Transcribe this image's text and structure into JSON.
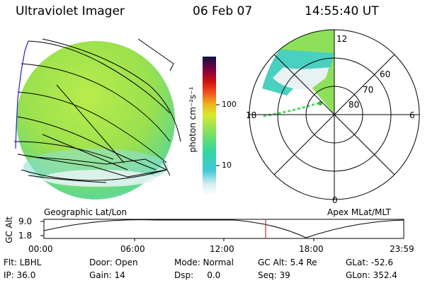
{
  "header": {
    "instrument": "Ultraviolet Imager",
    "date": "06 Feb 07",
    "time": "14:55:40 UT"
  },
  "colorbar": {
    "label": "photon cm⁻²s⁻¹",
    "ticks": [
      "100",
      "10"
    ]
  },
  "polar_plot": {
    "mlt_labels": [
      "12",
      "18",
      "6",
      "0"
    ],
    "mlat_labels": [
      "60",
      "70",
      "80"
    ]
  },
  "panel_labels": {
    "left": "Geographic Lat/Lon",
    "right": "Apex MLat/MLT"
  },
  "gc_alt_plot": {
    "ylabel": "GC Alt",
    "yticks": [
      "9.0",
      "1.8"
    ],
    "xticks": [
      "00:00",
      "06:00",
      "12:00",
      "18:00",
      "23:59"
    ],
    "current_time_marker": "14:55:40"
  },
  "status": {
    "flt": "Flt: LBHL",
    "door": "Door: Open",
    "mode": "Mode: Normal",
    "gc_alt": "GC Alt: 5.4 Re",
    "glat": "GLat: -52.6",
    "ip": "IP: 36.0",
    "gain": "Gain: 14",
    "dsp": "Dsp:     0.0",
    "seq": "Seq: 39",
    "glon": "GLon: 352.4"
  },
  "colors": {
    "disk_fill": "#9be24a",
    "marker": "#c03030"
  }
}
